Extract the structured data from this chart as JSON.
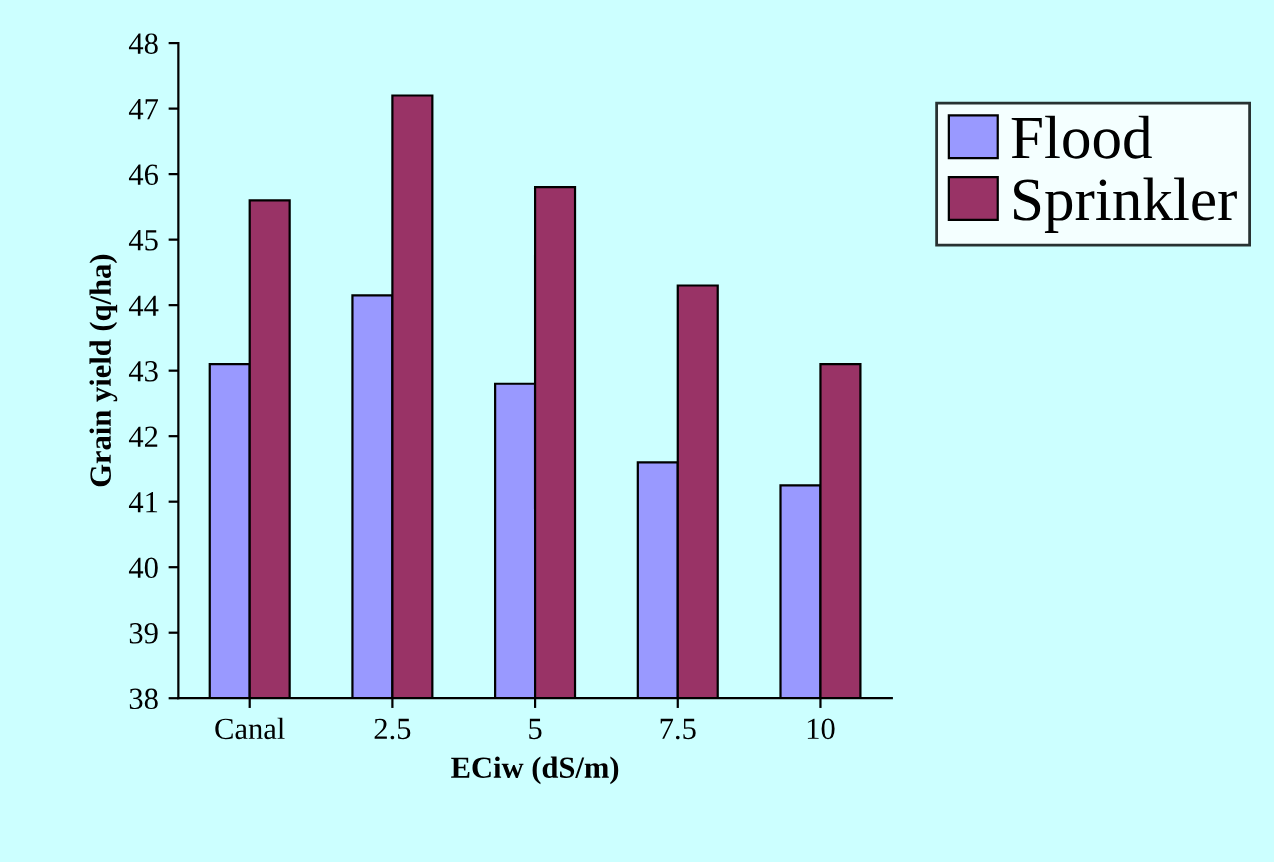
{
  "chart_data": {
    "type": "bar",
    "xlabel": "ECiw (dS/m)",
    "ylabel": "Grain yield (q/ha)",
    "categories": [
      "Canal",
      "2.5",
      "5",
      "7.5",
      "10"
    ],
    "series": [
      {
        "name": "Flood",
        "color": "#9999ff",
        "values": [
          43.1,
          44.15,
          42.8,
          41.6,
          41.25
        ]
      },
      {
        "name": "Sprinkler",
        "color": "#993366",
        "values": [
          45.6,
          47.2,
          45.8,
          44.3,
          43.1
        ]
      }
    ],
    "ylim": [
      38,
      48
    ],
    "yticks": [
      38,
      39,
      40,
      41,
      42,
      43,
      44,
      45,
      46,
      47,
      48
    ],
    "grid": false,
    "legend": "right"
  }
}
